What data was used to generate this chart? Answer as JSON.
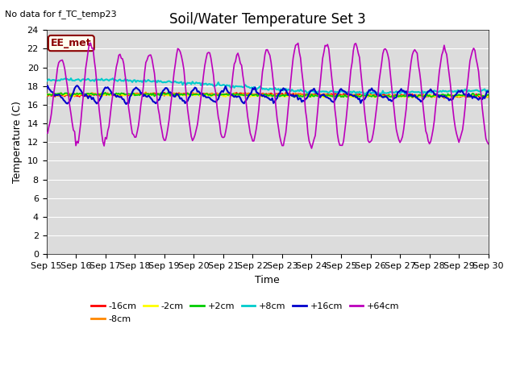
{
  "title": "Soil/Water Temperature Set 3",
  "no_data_text": "No data for f_TC_temp23",
  "xlabel": "Time",
  "ylabel": "Temperature (C)",
  "legend_label": "EE_met",
  "ylim": [
    0,
    24
  ],
  "series_labels": [
    "-16cm",
    "-8cm",
    "-2cm",
    "+2cm",
    "+8cm",
    "+16cm",
    "+64cm"
  ],
  "series_colors": [
    "#ff0000",
    "#ff8800",
    "#ffff00",
    "#00cc00",
    "#00cccc",
    "#0000cc",
    "#bb00bb"
  ],
  "background_color": "#dcdcdc",
  "x_tick_labels": [
    "Sep 15",
    "Sep 16",
    "Sep 17",
    "Sep 18",
    "Sep 19",
    "Sep 20",
    "Sep 21",
    "Sep 22",
    "Sep 23",
    "Sep 24",
    "Sep 25",
    "Sep 26",
    "Sep 27",
    "Sep 28",
    "Sep 29",
    "Sep 30"
  ],
  "title_fontsize": 12,
  "axis_label_fontsize": 9,
  "tick_fontsize": 8
}
